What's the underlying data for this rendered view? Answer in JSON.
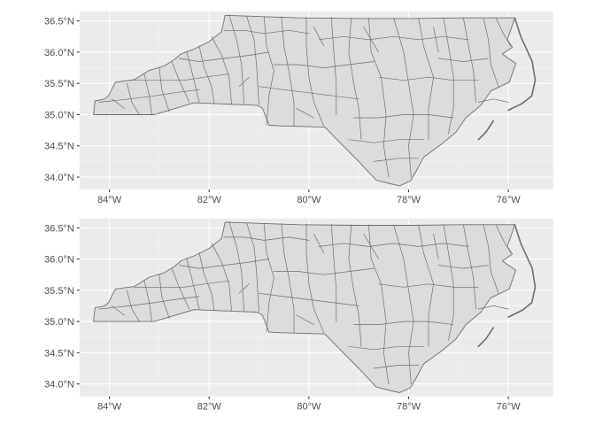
{
  "map": {
    "region": "North Carolina counties",
    "fill_color": "#dcdcdc",
    "border_color": "#6e6e6e",
    "panel_background": "#ebebeb",
    "grid_color": "#ffffff"
  },
  "chart_data": [
    {
      "type": "map",
      "xlim": [
        -84.6,
        -75.1
      ],
      "ylim": [
        33.8,
        36.65
      ],
      "x_ticks": [
        -84,
        -82,
        -80,
        -78,
        -76
      ],
      "x_tick_labels": [
        "84°W",
        "82°W",
        "80°W",
        "78°W",
        "76°W"
      ],
      "y_ticks": [
        34.0,
        34.5,
        35.0,
        35.5,
        36.0,
        36.5
      ],
      "y_tick_labels": [
        "34.0°N",
        "34.5°N",
        "35.0°N",
        "35.5°N",
        "36.0°N",
        "36.5°N"
      ],
      "grid": true
    },
    {
      "type": "map",
      "xlim": [
        -84.6,
        -75.1
      ],
      "ylim": [
        33.8,
        36.65
      ],
      "x_ticks": [
        -84,
        -82,
        -80,
        -78,
        -76
      ],
      "x_tick_labels": [
        "84°W",
        "82°W",
        "80°W",
        "78°W",
        "76°W"
      ],
      "y_ticks": [
        34.0,
        34.5,
        35.0,
        35.5,
        36.0,
        36.5
      ],
      "y_tick_labels": [
        "34.0°N",
        "34.5°N",
        "35.0°N",
        "35.5°N",
        "36.0°N",
        "36.5°N"
      ],
      "grid": true
    }
  ]
}
